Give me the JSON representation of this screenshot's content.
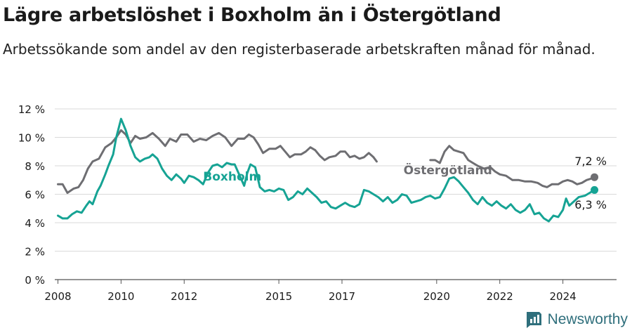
{
  "header": {
    "title": "Lägre arbetslöshet i Boxholm än i Östergötland",
    "subtitle": "Arbetssökande som andel av den registerbaserade arbetskraften månad för månad."
  },
  "brand": {
    "name": "Newsworthy"
  },
  "colors": {
    "boxholm": "#16a394",
    "ostergotland": "#6e6e72",
    "grid": "#d9d9d9",
    "text": "#1a1a1a"
  },
  "chart_data": {
    "type": "line",
    "title": "Lägre arbetslöshet i Boxholm än i Östergötland",
    "subtitle": "Arbetssökande som andel av den registerbaserade arbetskraften månad för månad.",
    "xlabel": "",
    "ylabel": "",
    "xlim": [
      2007.9,
      2025.7
    ],
    "ylim": [
      0,
      12
    ],
    "grid": true,
    "y_ticks": [
      0,
      2,
      4,
      6,
      8,
      10,
      12
    ],
    "y_tick_labels": [
      "0 %",
      "2 %",
      "4 %",
      "6 %",
      "8 %",
      "10 %",
      "12 %"
    ],
    "x_ticks": [
      2008,
      2010,
      2012,
      2015,
      2017,
      2020,
      2022,
      2024
    ],
    "x_tick_labels": [
      "2008",
      "2010",
      "2012",
      "2015",
      "2017",
      "2020",
      "2022",
      "2024"
    ],
    "series": [
      {
        "name": "Östergötland",
        "label": "Östergötland",
        "end_label": "7,2 %",
        "points": [
          [
            2008.0,
            6.7
          ],
          [
            2008.15,
            6.7
          ],
          [
            2008.3,
            6.1
          ],
          [
            2008.5,
            6.4
          ],
          [
            2008.65,
            6.5
          ],
          [
            2008.8,
            7.0
          ],
          [
            2008.95,
            7.8
          ],
          [
            2009.1,
            8.3
          ],
          [
            2009.3,
            8.5
          ],
          [
            2009.5,
            9.3
          ],
          [
            2009.7,
            9.6
          ],
          [
            2009.85,
            10.0
          ],
          [
            2010.0,
            10.5
          ],
          [
            2010.15,
            10.2
          ],
          [
            2010.3,
            9.6
          ],
          [
            2010.45,
            10.1
          ],
          [
            2010.6,
            9.9
          ],
          [
            2010.8,
            10.0
          ],
          [
            2011.0,
            10.3
          ],
          [
            2011.2,
            9.9
          ],
          [
            2011.4,
            9.4
          ],
          [
            2011.55,
            9.9
          ],
          [
            2011.75,
            9.7
          ],
          [
            2011.9,
            10.2
          ],
          [
            2012.1,
            10.2
          ],
          [
            2012.3,
            9.7
          ],
          [
            2012.5,
            9.9
          ],
          [
            2012.7,
            9.8
          ],
          [
            2012.9,
            10.1
          ],
          [
            2013.1,
            10.3
          ],
          [
            2013.3,
            10.0
          ],
          [
            2013.5,
            9.4
          ],
          [
            2013.7,
            9.9
          ],
          [
            2013.9,
            9.9
          ],
          [
            2014.05,
            10.2
          ],
          [
            2014.2,
            10.0
          ],
          [
            2014.35,
            9.5
          ],
          [
            2014.5,
            8.9
          ],
          [
            2014.7,
            9.2
          ],
          [
            2014.9,
            9.2
          ],
          [
            2015.05,
            9.4
          ],
          [
            2015.2,
            9.0
          ],
          [
            2015.35,
            8.6
          ],
          [
            2015.5,
            8.8
          ],
          [
            2015.7,
            8.8
          ],
          [
            2015.85,
            9.0
          ],
          [
            2016.0,
            9.3
          ],
          [
            2016.15,
            9.1
          ],
          [
            2016.3,
            8.7
          ],
          [
            2016.45,
            8.4
          ],
          [
            2016.6,
            8.6
          ],
          [
            2016.8,
            8.7
          ],
          [
            2016.95,
            9.0
          ],
          [
            2017.1,
            9.0
          ],
          [
            2017.25,
            8.6
          ],
          [
            2017.4,
            8.7
          ],
          [
            2017.55,
            8.5
          ],
          [
            2017.7,
            8.6
          ],
          [
            2017.85,
            8.9
          ],
          [
            2018.0,
            8.6
          ],
          [
            2018.1,
            8.3
          ],
          [
            2019.8,
            8.4
          ],
          [
            2019.95,
            8.4
          ],
          [
            2020.1,
            8.2
          ],
          [
            2020.25,
            9.0
          ],
          [
            2020.4,
            9.4
          ],
          [
            2020.55,
            9.1
          ],
          [
            2020.7,
            9.0
          ],
          [
            2020.85,
            8.9
          ],
          [
            2021.0,
            8.4
          ],
          [
            2021.15,
            8.2
          ],
          [
            2021.3,
            8.0
          ],
          [
            2021.5,
            7.8
          ],
          [
            2021.7,
            7.9
          ],
          [
            2021.85,
            7.6
          ],
          [
            2022.0,
            7.4
          ],
          [
            2022.2,
            7.3
          ],
          [
            2022.4,
            7.0
          ],
          [
            2022.6,
            7.0
          ],
          [
            2022.8,
            6.9
          ],
          [
            2023.0,
            6.9
          ],
          [
            2023.2,
            6.8
          ],
          [
            2023.35,
            6.6
          ],
          [
            2023.5,
            6.5
          ],
          [
            2023.65,
            6.7
          ],
          [
            2023.85,
            6.7
          ],
          [
            2024.0,
            6.9
          ],
          [
            2024.15,
            7.0
          ],
          [
            2024.3,
            6.9
          ],
          [
            2024.45,
            6.7
          ],
          [
            2024.6,
            6.8
          ],
          [
            2024.75,
            7.0
          ],
          [
            2024.9,
            7.1
          ],
          [
            2025.0,
            7.2
          ]
        ]
      },
      {
        "name": "Boxholm",
        "label": "Boxholm",
        "end_label": "6,3 %",
        "points": [
          [
            2008.0,
            4.5
          ],
          [
            2008.15,
            4.3
          ],
          [
            2008.3,
            4.3
          ],
          [
            2008.45,
            4.6
          ],
          [
            2008.6,
            4.8
          ],
          [
            2008.75,
            4.7
          ],
          [
            2008.9,
            5.2
          ],
          [
            2009.0,
            5.5
          ],
          [
            2009.1,
            5.3
          ],
          [
            2009.25,
            6.2
          ],
          [
            2009.35,
            6.6
          ],
          [
            2009.5,
            7.4
          ],
          [
            2009.6,
            8.0
          ],
          [
            2009.75,
            8.8
          ],
          [
            2009.85,
            10.0
          ],
          [
            2010.0,
            11.3
          ],
          [
            2010.15,
            10.5
          ],
          [
            2010.3,
            9.4
          ],
          [
            2010.45,
            8.6
          ],
          [
            2010.6,
            8.3
          ],
          [
            2010.75,
            8.5
          ],
          [
            2010.9,
            8.6
          ],
          [
            2011.0,
            8.8
          ],
          [
            2011.15,
            8.5
          ],
          [
            2011.3,
            7.8
          ],
          [
            2011.45,
            7.3
          ],
          [
            2011.6,
            7.0
          ],
          [
            2011.75,
            7.4
          ],
          [
            2011.9,
            7.1
          ],
          [
            2012.0,
            6.8
          ],
          [
            2012.15,
            7.3
          ],
          [
            2012.3,
            7.2
          ],
          [
            2012.45,
            7.0
          ],
          [
            2012.6,
            6.7
          ],
          [
            2012.75,
            7.5
          ],
          [
            2012.9,
            8.0
          ],
          [
            2013.05,
            8.1
          ],
          [
            2013.2,
            7.9
          ],
          [
            2013.35,
            8.2
          ],
          [
            2013.5,
            8.1
          ],
          [
            2013.6,
            8.1
          ],
          [
            2013.9,
            6.6
          ],
          [
            2014.0,
            7.5
          ],
          [
            2014.1,
            8.1
          ],
          [
            2014.25,
            7.9
          ],
          [
            2014.4,
            6.5
          ],
          [
            2014.55,
            6.2
          ],
          [
            2014.7,
            6.3
          ],
          [
            2014.85,
            6.2
          ],
          [
            2015.0,
            6.4
          ],
          [
            2015.15,
            6.3
          ],
          [
            2015.3,
            5.6
          ],
          [
            2015.45,
            5.8
          ],
          [
            2015.6,
            6.2
          ],
          [
            2015.75,
            6.0
          ],
          [
            2015.9,
            6.4
          ],
          [
            2016.05,
            6.1
          ],
          [
            2016.2,
            5.8
          ],
          [
            2016.35,
            5.4
          ],
          [
            2016.5,
            5.5
          ],
          [
            2016.65,
            5.1
          ],
          [
            2016.8,
            5.0
          ],
          [
            2016.95,
            5.2
          ],
          [
            2017.1,
            5.4
          ],
          [
            2017.25,
            5.2
          ],
          [
            2017.4,
            5.1
          ],
          [
            2017.55,
            5.3
          ],
          [
            2017.7,
            6.3
          ],
          [
            2017.85,
            6.2
          ],
          [
            2018.0,
            6.0
          ],
          [
            2018.15,
            5.8
          ],
          [
            2018.3,
            5.5
          ],
          [
            2018.45,
            5.8
          ],
          [
            2018.6,
            5.4
          ],
          [
            2018.75,
            5.6
          ],
          [
            2018.9,
            6.0
          ],
          [
            2019.05,
            5.9
          ],
          [
            2019.2,
            5.4
          ],
          [
            2019.35,
            5.5
          ],
          [
            2019.5,
            5.6
          ],
          [
            2019.65,
            5.8
          ],
          [
            2019.8,
            5.9
          ],
          [
            2019.95,
            5.7
          ],
          [
            2020.1,
            5.8
          ],
          [
            2020.25,
            6.4
          ],
          [
            2020.4,
            7.1
          ],
          [
            2020.55,
            7.2
          ],
          [
            2020.7,
            6.9
          ],
          [
            2020.85,
            6.5
          ],
          [
            2021.0,
            6.1
          ],
          [
            2021.15,
            5.6
          ],
          [
            2021.3,
            5.3
          ],
          [
            2021.45,
            5.8
          ],
          [
            2021.6,
            5.4
          ],
          [
            2021.75,
            5.2
          ],
          [
            2021.9,
            5.5
          ],
          [
            2022.05,
            5.2
          ],
          [
            2022.2,
            5.0
          ],
          [
            2022.35,
            5.3
          ],
          [
            2022.5,
            4.9
          ],
          [
            2022.65,
            4.7
          ],
          [
            2022.8,
            4.9
          ],
          [
            2022.95,
            5.3
          ],
          [
            2023.1,
            4.6
          ],
          [
            2023.25,
            4.7
          ],
          [
            2023.4,
            4.3
          ],
          [
            2023.55,
            4.1
          ],
          [
            2023.7,
            4.5
          ],
          [
            2023.85,
            4.4
          ],
          [
            2024.0,
            4.9
          ],
          [
            2024.1,
            5.7
          ],
          [
            2024.2,
            5.2
          ],
          [
            2024.5,
            5.8
          ],
          [
            2024.7,
            5.9
          ],
          [
            2024.85,
            6.1
          ],
          [
            2025.0,
            6.3
          ]
        ]
      }
    ]
  }
}
